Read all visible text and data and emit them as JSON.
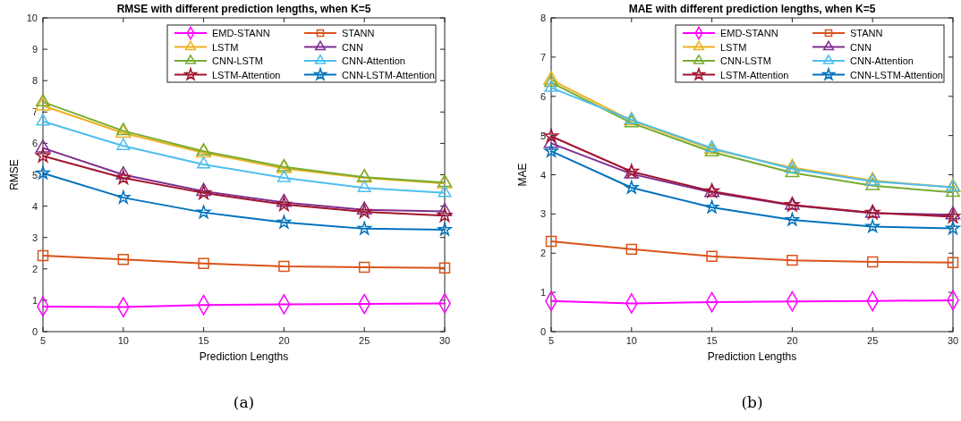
{
  "chart_data": [
    {
      "type": "line",
      "title": "RMSE with different prediction lengths, when K=5",
      "xlabel": "Prediction Lengths",
      "ylabel": "RMSE",
      "x": [
        5,
        10,
        15,
        20,
        25,
        30
      ],
      "xlim": [
        5,
        30
      ],
      "xticks": [
        5,
        10,
        15,
        20,
        25,
        30
      ],
      "ylim": [
        0,
        10
      ],
      "yticks": [
        0,
        1,
        2,
        3,
        4,
        5,
        6,
        7,
        8,
        9,
        10
      ],
      "grid": false,
      "legend": "top right",
      "annotations": [
        "(a)"
      ],
      "series": [
        {
          "name": "EMD-STANN",
          "color": "#ff00ff",
          "marker": "diamond",
          "values": [
            0.8,
            0.78,
            0.85,
            0.87,
            0.88,
            0.9
          ]
        },
        {
          "name": "STANN",
          "color": "#d95319",
          "marker": "square",
          "values": [
            2.42,
            2.3,
            2.17,
            2.08,
            2.05,
            2.03
          ]
        },
        {
          "name": "LSTM",
          "color": "#edb120",
          "marker": "triangle",
          "values": [
            7.2,
            6.33,
            5.7,
            5.2,
            4.9,
            4.72
          ]
        },
        {
          "name": "CNN",
          "color": "#7e2f8e",
          "marker": "triangle",
          "values": [
            5.85,
            5.0,
            4.47,
            4.12,
            3.88,
            3.83
          ]
        },
        {
          "name": "CNN-LSTM",
          "color": "#77ac30",
          "marker": "triangle",
          "values": [
            7.32,
            6.4,
            5.75,
            5.25,
            4.92,
            4.75
          ]
        },
        {
          "name": "CNN-Attention",
          "color": "#4dbeee",
          "marker": "triangle",
          "values": [
            6.7,
            5.92,
            5.33,
            4.9,
            4.58,
            4.42
          ]
        },
        {
          "name": "LSTM-Attention",
          "color": "#a2142f",
          "marker": "star",
          "values": [
            5.6,
            4.9,
            4.42,
            4.05,
            3.82,
            3.7
          ]
        },
        {
          "name": "CNN-LSTM-Attention",
          "color": "#0072bd",
          "marker": "star",
          "values": [
            5.05,
            4.27,
            3.8,
            3.48,
            3.28,
            3.25
          ]
        }
      ]
    },
    {
      "type": "line",
      "title": "MAE with different prediction lengths, when K=5",
      "xlabel": "Prediction Lengths",
      "ylabel": "MAE",
      "x": [
        5,
        10,
        15,
        20,
        25,
        30
      ],
      "xlim": [
        5,
        30
      ],
      "xticks": [
        5,
        10,
        15,
        20,
        25,
        30
      ],
      "ylim": [
        0,
        8
      ],
      "yticks": [
        0,
        1,
        2,
        3,
        4,
        5,
        6,
        7,
        8
      ],
      "grid": false,
      "legend": "top right",
      "annotations": [
        "(b)"
      ],
      "series": [
        {
          "name": "EMD-STANN",
          "color": "#ff00ff",
          "marker": "diamond",
          "values": [
            0.78,
            0.72,
            0.75,
            0.77,
            0.78,
            0.8
          ]
        },
        {
          "name": "STANN",
          "color": "#d95319",
          "marker": "square",
          "values": [
            2.3,
            2.1,
            1.92,
            1.82,
            1.78,
            1.76
          ]
        },
        {
          "name": "LSTM",
          "color": "#edb120",
          "marker": "triangle",
          "values": [
            6.42,
            5.38,
            4.65,
            4.18,
            3.85,
            3.68
          ]
        },
        {
          "name": "CNN",
          "color": "#7e2f8e",
          "marker": "triangle",
          "values": [
            4.8,
            4.02,
            3.55,
            3.22,
            3.02,
            2.98
          ]
        },
        {
          "name": "CNN-LSTM",
          "color": "#77ac30",
          "marker": "triangle",
          "values": [
            6.35,
            5.32,
            4.58,
            4.05,
            3.72,
            3.55
          ]
        },
        {
          "name": "CNN-Attention",
          "color": "#4dbeee",
          "marker": "triangle",
          "values": [
            6.22,
            5.4,
            4.68,
            4.15,
            3.83,
            3.68
          ]
        },
        {
          "name": "LSTM-Attention",
          "color": "#a2142f",
          "marker": "star",
          "values": [
            4.98,
            4.08,
            3.58,
            3.23,
            3.03,
            2.93
          ]
        },
        {
          "name": "CNN-LSTM-Attention",
          "color": "#0072bd",
          "marker": "star",
          "values": [
            4.6,
            3.67,
            3.17,
            2.85,
            2.68,
            2.63
          ]
        }
      ]
    }
  ]
}
